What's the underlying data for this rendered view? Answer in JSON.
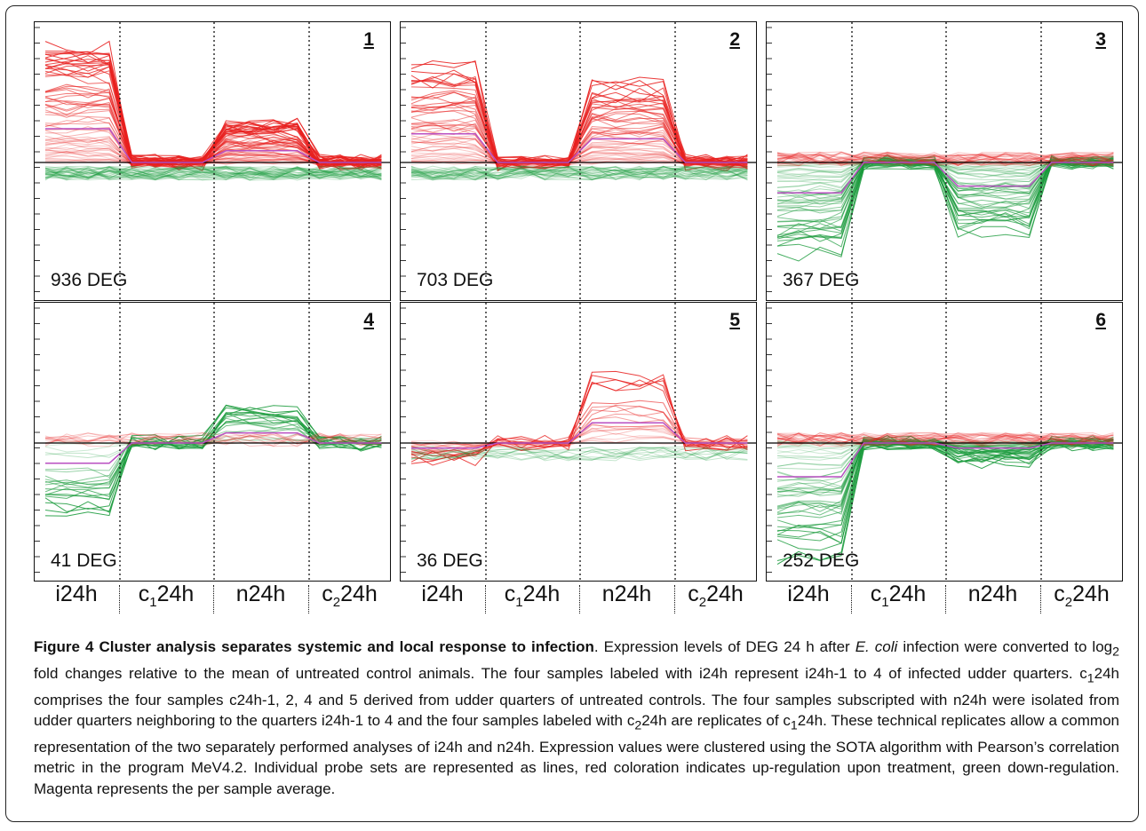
{
  "figure": {
    "panels": [
      {
        "number": "1",
        "deg": "936 DEG",
        "profile": "up_i_n",
        "density": 70
      },
      {
        "number": "2",
        "deg": "703 DEG",
        "profile": "up_i_n_strong",
        "density": 60
      },
      {
        "number": "3",
        "deg": "367 DEG",
        "profile": "down_i_n",
        "density": 55
      },
      {
        "number": "4",
        "deg": "41 DEG",
        "profile": "down_i_up_n",
        "density": 22
      },
      {
        "number": "5",
        "deg": "36 DEG",
        "profile": "up_n",
        "density": 22
      },
      {
        "number": "6",
        "deg": "252 DEG",
        "profile": "down_i",
        "density": 50
      }
    ],
    "x_labels": [
      {
        "base": "i24h",
        "sub": "",
        "tail": ""
      },
      {
        "base": "c",
        "sub": "1",
        "tail": "24h"
      },
      {
        "base": "n24h",
        "sub": "",
        "tail": ""
      },
      {
        "base": "c",
        "sub": "2",
        "tail": "24h"
      }
    ],
    "colors": {
      "up": "#e8201f",
      "down": "#189a3a",
      "average": "#b94fc2",
      "baseline": "#000000"
    }
  },
  "caption": {
    "title": "Figure 4 Cluster analysis separates systemic and local response to infection",
    "p1": ". Expression levels of DEG 24 h after ",
    "p1_italic": "E. coli",
    "p2": " infection were converted to log",
    "p2_sub": "2",
    "p3": " fold changes relative to the mean of untreated control animals. The four samples labeled with i24h represent i24h-1 to 4 of infected udder quarters. c",
    "p3_sub": "1",
    "p4": "24h comprises the four samples c24h-1, 2, 4 and 5 derived from udder quarters of untreated controls. The four samples subscripted with n24h were isolated from udder quarters neighboring to the quarters i24h-1 to 4 and the four samples labeled with c",
    "p4_sub": "2",
    "p5": "24h are replicates of c",
    "p5_sub": "1",
    "p6": "24h. These technical replicates allow a common representation of the two separately performed analyses of i24h and n24h. Expression values were clustered using the SOTA algorithm with Pearson’s correlation metric in the program MeV4.2. Individual probe sets are represented as lines, red coloration indicates up-regulation upon treatment, green down-regulation. Magenta represents the per sample average."
  }
}
